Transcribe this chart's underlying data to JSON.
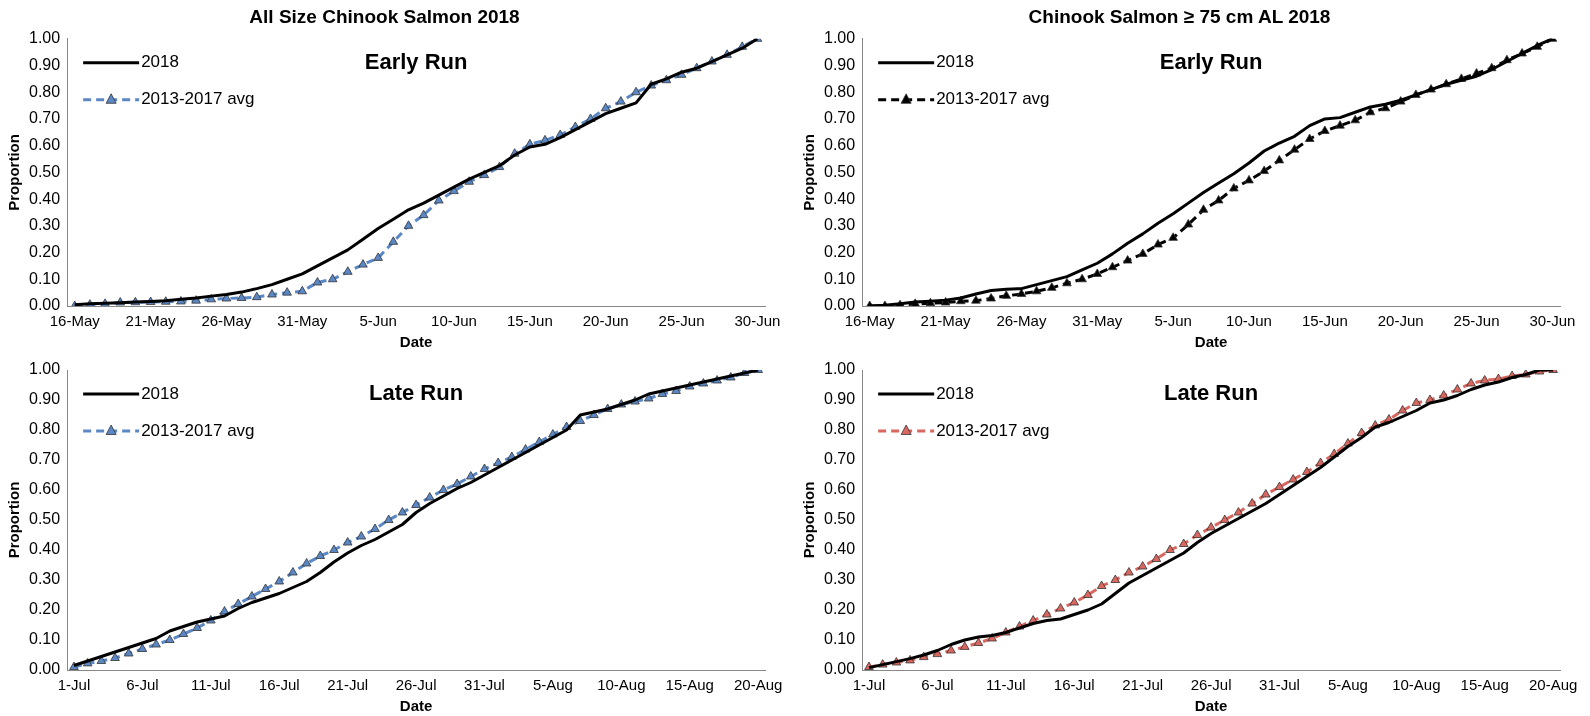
{
  "chart_data": [
    {
      "type": "line",
      "title": "All Size Chinook Salmon 2018",
      "xlabel": "Date",
      "ylabel": "Proportion",
      "annotations": [
        "Early Run"
      ],
      "legend": "top left",
      "grid": false,
      "categories": [
        "16-May",
        null,
        null,
        null,
        null,
        "21-May",
        null,
        null,
        null,
        null,
        "26-May",
        null,
        null,
        null,
        null,
        "31-May",
        null,
        null,
        null,
        null,
        "5-Jun",
        null,
        null,
        null,
        null,
        "10-Jun",
        null,
        null,
        null,
        null,
        "15-Jun",
        null,
        null,
        null,
        null,
        "20-Jun",
        null,
        null,
        null,
        null,
        "25-Jun",
        null,
        null,
        null,
        null,
        "30-Jun"
      ],
      "ylim": [
        0,
        1
      ],
      "yticks": [
        {
          "value": 0,
          "label": "0.00"
        },
        {
          "value": 0.1,
          "label": "0.10"
        },
        {
          "value": 0.2,
          "label": "0.20"
        },
        {
          "value": 0.3,
          "label": "0.30"
        },
        {
          "value": 0.4,
          "label": "0.40"
        },
        {
          "value": 0.5,
          "label": "0.50"
        },
        {
          "value": 0.6,
          "label": "0.60"
        },
        {
          "value": 0.7,
          "label": "0.70"
        },
        {
          "value": 0.8,
          "label": "0.80"
        },
        {
          "value": 0.9,
          "label": "0.90"
        },
        {
          "value": 1,
          "label": "1.00"
        }
      ],
      "series": [
        {
          "name": "2018",
          "color": "#000000",
          "marker": "none",
          "line_style": "solid",
          "values": [
            0.005,
            0.008,
            0.01,
            0.012,
            0.015,
            0.017,
            0.02,
            0.025,
            0.03,
            0.037,
            0.043,
            0.052,
            0.065,
            0.08,
            0.1,
            0.12,
            0.15,
            0.18,
            0.21,
            0.25,
            0.29,
            0.325,
            0.36,
            0.385,
            0.415,
            0.445,
            0.475,
            0.5,
            0.525,
            0.565,
            0.595,
            0.605,
            0.63,
            0.66,
            0.69,
            0.72,
            0.74,
            0.76,
            0.83,
            0.85,
            0.875,
            0.89,
            0.915,
            0.94,
            0.965,
            1.0
          ]
        },
        {
          "name": "2013-2017 avg",
          "color": "#5b87c5",
          "marker": "triangle",
          "line_style": "dashed",
          "values": [
            0.0,
            0.005,
            0.008,
            0.013,
            0.014,
            0.015,
            0.016,
            0.017,
            0.02,
            0.025,
            0.028,
            0.03,
            0.033,
            0.043,
            0.05,
            0.055,
            0.088,
            0.1,
            0.128,
            0.155,
            0.18,
            0.24,
            0.3,
            0.34,
            0.395,
            0.43,
            0.465,
            0.49,
            0.52,
            0.57,
            0.605,
            0.62,
            0.64,
            0.67,
            0.7,
            0.74,
            0.765,
            0.8,
            0.825,
            0.845,
            0.865,
            0.89,
            0.915,
            0.94,
            0.97,
            1.0
          ]
        }
      ]
    },
    {
      "type": "line",
      "title": "Chinook Salmon ≥ 75 cm AL 2018",
      "xlabel": "Date",
      "ylabel": "Proportion",
      "annotations": [
        "Early Run"
      ],
      "legend": "top left",
      "grid": false,
      "categories": [
        "16-May",
        null,
        null,
        null,
        null,
        "21-May",
        null,
        null,
        null,
        null,
        "26-May",
        null,
        null,
        null,
        null,
        "31-May",
        null,
        null,
        null,
        null,
        "5-Jun",
        null,
        null,
        null,
        null,
        "10-Jun",
        null,
        null,
        null,
        null,
        "15-Jun",
        null,
        null,
        null,
        null,
        "20-Jun",
        null,
        null,
        null,
        null,
        "25-Jun",
        null,
        null,
        null,
        null,
        "30-Jun"
      ],
      "ylim": [
        0,
        1
      ],
      "yticks": [
        {
          "value": 0,
          "label": "0.00"
        },
        {
          "value": 0.1,
          "label": "0.10"
        },
        {
          "value": 0.2,
          "label": "0.20"
        },
        {
          "value": 0.3,
          "label": "0.30"
        },
        {
          "value": 0.4,
          "label": "0.40"
        },
        {
          "value": 0.5,
          "label": "0.50"
        },
        {
          "value": 0.6,
          "label": "0.60"
        },
        {
          "value": 0.7,
          "label": "0.70"
        },
        {
          "value": 0.8,
          "label": "0.80"
        },
        {
          "value": 0.9,
          "label": "0.90"
        },
        {
          "value": 1,
          "label": "1.00"
        }
      ],
      "series": [
        {
          "name": "2018",
          "color": "#000000",
          "marker": "none",
          "line_style": "solid",
          "values": [
            0.0,
            0.003,
            0.008,
            0.015,
            0.018,
            0.022,
            0.03,
            0.045,
            0.058,
            0.063,
            0.065,
            0.08,
            0.095,
            0.11,
            0.135,
            0.16,
            0.195,
            0.235,
            0.27,
            0.31,
            0.345,
            0.385,
            0.425,
            0.46,
            0.495,
            0.535,
            0.58,
            0.61,
            0.635,
            0.675,
            0.7,
            0.705,
            0.725,
            0.745,
            0.755,
            0.77,
            0.79,
            0.81,
            0.83,
            0.845,
            0.86,
            0.885,
            0.915,
            0.945,
            0.975,
            1.0
          ]
        },
        {
          "name": "2013-2017 avg",
          "color": "#000000",
          "marker": "triangle",
          "line_style": "dashed",
          "values": [
            0.0,
            0.0,
            0.003,
            0.008,
            0.01,
            0.013,
            0.018,
            0.02,
            0.028,
            0.038,
            0.045,
            0.055,
            0.068,
            0.085,
            0.1,
            0.12,
            0.145,
            0.17,
            0.195,
            0.23,
            0.255,
            0.305,
            0.36,
            0.395,
            0.44,
            0.47,
            0.505,
            0.545,
            0.585,
            0.625,
            0.655,
            0.675,
            0.695,
            0.725,
            0.74,
            0.765,
            0.79,
            0.81,
            0.83,
            0.85,
            0.87,
            0.89,
            0.92,
            0.945,
            0.97,
            1.0
          ]
        }
      ]
    },
    {
      "type": "line",
      "xlabel": "Date",
      "ylabel": "Proportion",
      "annotations": [
        "Late Run"
      ],
      "legend": "top left",
      "grid": false,
      "categories": [
        "1-Jul",
        null,
        null,
        null,
        null,
        "6-Jul",
        null,
        null,
        null,
        null,
        "11-Jul",
        null,
        null,
        null,
        null,
        "16-Jul",
        null,
        null,
        null,
        null,
        "21-Jul",
        null,
        null,
        null,
        null,
        "26-Jul",
        null,
        null,
        null,
        null,
        "31-Jul",
        null,
        null,
        null,
        null,
        "5-Aug",
        null,
        null,
        null,
        null,
        "10-Aug",
        null,
        null,
        null,
        null,
        "15-Aug",
        null,
        null,
        null,
        null,
        "20-Aug"
      ],
      "ylim": [
        0,
        1
      ],
      "yticks": [
        {
          "value": 0,
          "label": "0.00"
        },
        {
          "value": 0.1,
          "label": "0.10"
        },
        {
          "value": 0.2,
          "label": "0.20"
        },
        {
          "value": 0.3,
          "label": "0.30"
        },
        {
          "value": 0.4,
          "label": "0.40"
        },
        {
          "value": 0.5,
          "label": "0.50"
        },
        {
          "value": 0.6,
          "label": "0.60"
        },
        {
          "value": 0.7,
          "label": "0.70"
        },
        {
          "value": 0.8,
          "label": "0.80"
        },
        {
          "value": 0.9,
          "label": "0.90"
        },
        {
          "value": 1,
          "label": "1.00"
        }
      ],
      "series": [
        {
          "name": "2018",
          "color": "#000000",
          "marker": "none",
          "line_style": "solid",
          "values": [
            0.015,
            0.03,
            0.045,
            0.06,
            0.075,
            0.09,
            0.105,
            0.13,
            0.145,
            0.16,
            0.17,
            0.18,
            0.205,
            0.225,
            0.24,
            0.255,
            0.275,
            0.295,
            0.325,
            0.36,
            0.39,
            0.415,
            0.435,
            0.46,
            0.485,
            0.525,
            0.555,
            0.58,
            0.605,
            0.625,
            0.65,
            0.675,
            0.7,
            0.725,
            0.75,
            0.775,
            0.8,
            0.85,
            0.86,
            0.87,
            0.885,
            0.9,
            0.92,
            0.93,
            0.94,
            0.95,
            0.96,
            0.97,
            0.98,
            0.99,
            1.0
          ]
        },
        {
          "name": "2013-2017 avg",
          "color": "#5b87c5",
          "marker": "triangle",
          "line_style": "dashed",
          "values": [
            0.01,
            0.022,
            0.03,
            0.04,
            0.055,
            0.07,
            0.085,
            0.1,
            0.12,
            0.14,
            0.165,
            0.195,
            0.22,
            0.245,
            0.27,
            0.295,
            0.325,
            0.355,
            0.38,
            0.4,
            0.425,
            0.445,
            0.47,
            0.5,
            0.525,
            0.55,
            0.575,
            0.6,
            0.62,
            0.645,
            0.67,
            0.69,
            0.71,
            0.735,
            0.76,
            0.785,
            0.81,
            0.83,
            0.85,
            0.87,
            0.885,
            0.895,
            0.905,
            0.92,
            0.93,
            0.945,
            0.955,
            0.965,
            0.975,
            0.99,
            1.0
          ]
        }
      ]
    },
    {
      "type": "line",
      "xlabel": "Date",
      "ylabel": "Proportion",
      "annotations": [
        "Late Run"
      ],
      "legend": "top left",
      "grid": false,
      "categories": [
        "1-Jul",
        null,
        null,
        null,
        null,
        "6-Jul",
        null,
        null,
        null,
        null,
        "11-Jul",
        null,
        null,
        null,
        null,
        "16-Jul",
        null,
        null,
        null,
        null,
        "21-Jul",
        null,
        null,
        null,
        null,
        "26-Jul",
        null,
        null,
        null,
        null,
        "31-Jul",
        null,
        null,
        null,
        null,
        "5-Aug",
        null,
        null,
        null,
        null,
        "10-Aug",
        null,
        null,
        null,
        null,
        "15-Aug",
        null,
        null,
        null,
        null,
        "20-Aug"
      ],
      "ylim": [
        0,
        1
      ],
      "yticks": [
        {
          "value": 0,
          "label": "0.00"
        },
        {
          "value": 0.1,
          "label": "0.10"
        },
        {
          "value": 0.2,
          "label": "0.20"
        },
        {
          "value": 0.3,
          "label": "0.30"
        },
        {
          "value": 0.4,
          "label": "0.40"
        },
        {
          "value": 0.5,
          "label": "0.50"
        },
        {
          "value": 0.6,
          "label": "0.60"
        },
        {
          "value": 0.7,
          "label": "0.70"
        },
        {
          "value": 0.8,
          "label": "0.80"
        },
        {
          "value": 0.9,
          "label": "0.90"
        },
        {
          "value": 1,
          "label": "1.00"
        }
      ],
      "series": [
        {
          "name": "2018",
          "color": "#000000",
          "marker": "none",
          "line_style": "solid",
          "values": [
            0.008,
            0.018,
            0.028,
            0.038,
            0.05,
            0.065,
            0.085,
            0.1,
            0.11,
            0.115,
            0.125,
            0.14,
            0.155,
            0.165,
            0.17,
            0.185,
            0.2,
            0.22,
            0.255,
            0.29,
            0.315,
            0.34,
            0.365,
            0.39,
            0.425,
            0.455,
            0.48,
            0.505,
            0.53,
            0.555,
            0.585,
            0.615,
            0.645,
            0.675,
            0.71,
            0.745,
            0.775,
            0.81,
            0.825,
            0.845,
            0.865,
            0.89,
            0.9,
            0.915,
            0.935,
            0.95,
            0.96,
            0.975,
            0.985,
            1.0,
            1.0
          ]
        },
        {
          "name": "2013-2017 avg",
          "color": "#d9675f",
          "marker": "triangle",
          "line_style": "dashed",
          "values": [
            0.01,
            0.018,
            0.025,
            0.032,
            0.043,
            0.053,
            0.065,
            0.077,
            0.09,
            0.105,
            0.125,
            0.145,
            0.165,
            0.185,
            0.205,
            0.225,
            0.25,
            0.28,
            0.3,
            0.325,
            0.345,
            0.37,
            0.4,
            0.42,
            0.45,
            0.475,
            0.5,
            0.525,
            0.555,
            0.585,
            0.61,
            0.635,
            0.66,
            0.69,
            0.72,
            0.755,
            0.79,
            0.815,
            0.835,
            0.865,
            0.89,
            0.9,
            0.915,
            0.935,
            0.955,
            0.965,
            0.97,
            0.98,
            0.985,
            0.995,
            1.0
          ]
        }
      ]
    }
  ]
}
